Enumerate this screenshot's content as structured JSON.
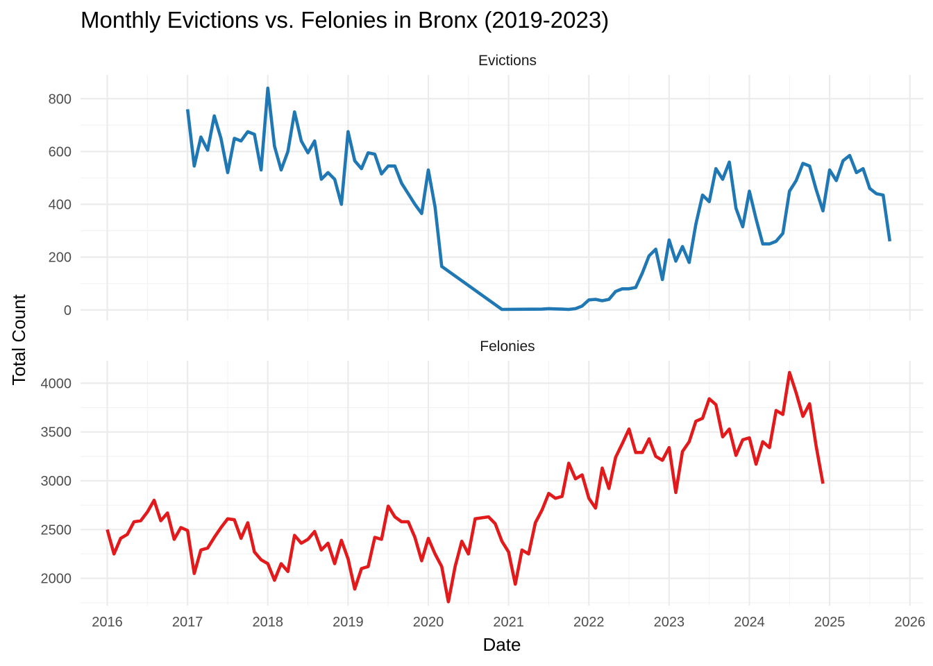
{
  "chart_data": {
    "type": "line",
    "title": "Monthly Evictions vs. Felonies in Bronx (2019-2023)",
    "xlabel": "Date",
    "ylabel": "Total Count",
    "x_ticks": [
      "2016",
      "2017",
      "2018",
      "2019",
      "2020",
      "2021",
      "2022",
      "2023",
      "2024",
      "2025",
      "2026"
    ],
    "xlim": [
      "2015-09-01",
      "2026-03-01"
    ],
    "grid": true,
    "legend": "none",
    "panels": [
      {
        "name": "Evictions",
        "color": "#1f78b4",
        "ylim": [
          -40,
          890
        ],
        "y_ticks": [
          0,
          200,
          400,
          600,
          800
        ],
        "x": [
          "2017-01",
          "2017-02",
          "2017-03",
          "2017-04",
          "2017-05",
          "2017-06",
          "2017-07",
          "2017-08",
          "2017-09",
          "2017-10",
          "2017-11",
          "2017-12",
          "2018-01",
          "2018-02",
          "2018-03",
          "2018-04",
          "2018-05",
          "2018-06",
          "2018-07",
          "2018-08",
          "2018-09",
          "2018-10",
          "2018-11",
          "2018-12",
          "2019-01",
          "2019-02",
          "2019-03",
          "2019-04",
          "2019-05",
          "2019-06",
          "2019-07",
          "2019-08",
          "2019-09",
          "2019-10",
          "2019-11",
          "2019-12",
          "2020-01",
          "2020-02",
          "2020-03",
          "2020-12",
          "2021-06",
          "2021-07",
          "2021-08",
          "2021-09",
          "2021-10",
          "2021-11",
          "2021-12",
          "2022-01",
          "2022-02",
          "2022-03",
          "2022-04",
          "2022-05",
          "2022-06",
          "2022-07",
          "2022-08",
          "2022-09",
          "2022-10",
          "2022-11",
          "2022-12",
          "2023-01",
          "2023-02",
          "2023-03",
          "2023-04",
          "2023-05",
          "2023-06",
          "2023-07",
          "2023-08",
          "2023-09",
          "2023-10",
          "2023-11",
          "2023-12",
          "2024-01",
          "2024-02",
          "2024-03",
          "2024-04",
          "2024-05",
          "2024-06",
          "2024-07",
          "2024-08",
          "2024-09",
          "2024-10",
          "2024-11",
          "2024-12",
          "2025-01",
          "2025-02",
          "2025-03",
          "2025-04",
          "2025-05",
          "2025-06",
          "2025-07",
          "2025-08",
          "2025-09",
          "2025-10"
        ],
        "values": [
          760,
          545,
          655,
          605,
          735,
          650,
          520,
          650,
          640,
          675,
          665,
          530,
          840,
          620,
          530,
          600,
          750,
          640,
          595,
          640,
          495,
          520,
          495,
          400,
          675,
          565,
          535,
          595,
          590,
          515,
          545,
          545,
          480,
          440,
          400,
          365,
          530,
          390,
          165,
          2,
          3,
          5,
          4,
          3,
          2,
          5,
          15,
          38,
          40,
          35,
          40,
          70,
          80,
          80,
          85,
          140,
          205,
          230,
          115,
          265,
          185,
          240,
          180,
          325,
          435,
          410,
          535,
          495,
          560,
          385,
          315,
          450,
          345,
          250,
          250,
          260,
          290,
          450,
          490,
          555,
          545,
          455,
          375,
          530,
          490,
          565,
          585,
          520,
          535,
          460,
          440,
          435,
          260
        ]
      },
      {
        "name": "Felonies",
        "color": "#e31a1c",
        "ylim": [
          1720,
          4230
        ],
        "y_ticks": [
          2000,
          2500,
          3000,
          3500,
          4000
        ],
        "x": [
          "2016-01",
          "2016-02",
          "2016-03",
          "2016-04",
          "2016-05",
          "2016-06",
          "2016-07",
          "2016-08",
          "2016-09",
          "2016-10",
          "2016-11",
          "2016-12",
          "2017-01",
          "2017-02",
          "2017-03",
          "2017-04",
          "2017-05",
          "2017-06",
          "2017-07",
          "2017-08",
          "2017-09",
          "2017-10",
          "2017-11",
          "2017-12",
          "2018-01",
          "2018-02",
          "2018-03",
          "2018-04",
          "2018-05",
          "2018-06",
          "2018-07",
          "2018-08",
          "2018-09",
          "2018-10",
          "2018-11",
          "2018-12",
          "2019-01",
          "2019-02",
          "2019-03",
          "2019-04",
          "2019-05",
          "2019-06",
          "2019-07",
          "2019-08",
          "2019-09",
          "2019-10",
          "2019-11",
          "2019-12",
          "2020-01",
          "2020-02",
          "2020-03",
          "2020-04",
          "2020-05",
          "2020-06",
          "2020-07",
          "2020-08",
          "2020-09",
          "2020-10",
          "2020-11",
          "2020-12",
          "2021-01",
          "2021-02",
          "2021-03",
          "2021-04",
          "2021-05",
          "2021-06",
          "2021-07",
          "2021-08",
          "2021-09",
          "2021-10",
          "2021-11",
          "2021-12",
          "2022-01",
          "2022-02",
          "2022-03",
          "2022-04",
          "2022-05",
          "2022-06",
          "2022-07",
          "2022-08",
          "2022-09",
          "2022-10",
          "2022-11",
          "2022-12",
          "2023-01",
          "2023-02",
          "2023-03",
          "2023-04",
          "2023-05",
          "2023-06",
          "2023-07",
          "2023-08",
          "2023-09",
          "2023-10",
          "2023-11",
          "2023-12",
          "2024-01",
          "2024-02",
          "2024-03",
          "2024-04",
          "2024-05",
          "2024-06",
          "2024-07",
          "2024-08",
          "2024-09",
          "2024-10",
          "2024-11",
          "2024-12"
        ],
        "values": [
          2500,
          2250,
          2410,
          2450,
          2580,
          2590,
          2680,
          2800,
          2590,
          2670,
          2400,
          2520,
          2490,
          2050,
          2290,
          2310,
          2420,
          2520,
          2610,
          2600,
          2410,
          2570,
          2270,
          2190,
          2150,
          1980,
          2150,
          2070,
          2440,
          2360,
          2400,
          2480,
          2290,
          2360,
          2150,
          2390,
          2200,
          1890,
          2100,
          2120,
          2420,
          2400,
          2740,
          2630,
          2580,
          2580,
          2420,
          2180,
          2410,
          2250,
          2120,
          1760,
          2120,
          2380,
          2250,
          2610,
          2620,
          2630,
          2560,
          2380,
          2270,
          1940,
          2290,
          2250,
          2570,
          2700,
          2870,
          2820,
          2840,
          3180,
          3020,
          3060,
          2820,
          2720,
          3130,
          2920,
          3240,
          3380,
          3530,
          3290,
          3290,
          3430,
          3250,
          3210,
          3340,
          2880,
          3300,
          3400,
          3610,
          3640,
          3840,
          3780,
          3450,
          3530,
          3260,
          3420,
          3440,
          3170,
          3400,
          3340,
          3720,
          3680,
          4110,
          3900,
          3660,
          3790,
          3350,
          2970
        ]
      }
    ]
  }
}
